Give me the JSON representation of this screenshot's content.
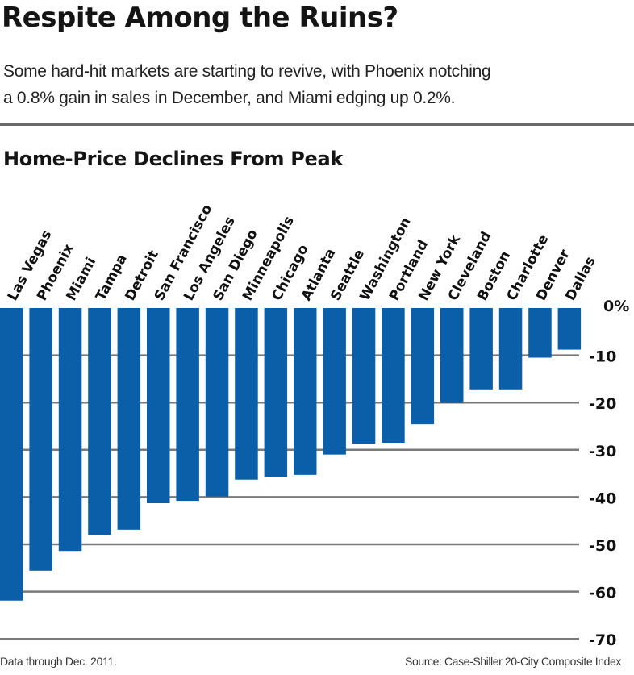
{
  "header": {
    "title": "Respite Among the Ruins?",
    "subtitle_line1": "Some hard-hit markets are starting to revive, with Phoenix notching",
    "subtitle_line2": "a 0.8% gain in sales in December, and Miami edging up 0.2%."
  },
  "footer": {
    "note": "Data through Dec. 2011.",
    "source": "Source: Case-Shiller 20-City Composite Index"
  },
  "colors": {
    "bar": "#0a5fa8",
    "grid": "#7a7a7a"
  },
  "chart_data": {
    "type": "bar",
    "title": "Home-Price Declines From Peak",
    "xlabel": "",
    "ylabel": "",
    "ylim": [
      -70,
      0
    ],
    "yticks": [
      0,
      -10,
      -20,
      -30,
      -40,
      -50,
      -60,
      -70
    ],
    "ytick_labels": [
      "0%",
      "-10",
      "-20",
      "-30",
      "-40",
      "-50",
      "-60",
      "-70"
    ],
    "grid": true,
    "categories": [
      "Las Vegas",
      "Phoenix",
      "Miami",
      "Tampa",
      "Detroit",
      "San Francisco",
      "Los Angeles",
      "San Diego",
      "Minneapolis",
      "Chicago",
      "Atlanta",
      "Seattle",
      "Washington",
      "Portland",
      "New York",
      "Cleveland",
      "Boston",
      "Charlotte",
      "Denver",
      "Dallas"
    ],
    "values": [
      -61.9,
      -55.6,
      -51.4,
      -48.0,
      -46.9,
      -41.3,
      -40.8,
      -39.9,
      -36.3,
      -35.8,
      -35.3,
      -31.0,
      -28.7,
      -28.5,
      -24.6,
      -20.1,
      -17.2,
      -17.2,
      -10.5,
      -8.8
    ]
  }
}
